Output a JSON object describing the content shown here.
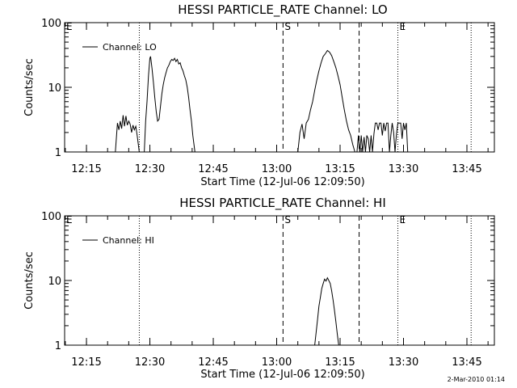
{
  "footer": "2-Mar-2010 01:14",
  "chart_data": [
    {
      "type": "line",
      "title": "HESSI PARTICLE_RATE Channel: LO",
      "xlabel": "Start Time (12-Jul-06 12:09:50)",
      "ylabel": "Counts/sec",
      "yscale": "log",
      "ylim": [
        1,
        100
      ],
      "xlim": [
        "12:09:50",
        "13:51:30"
      ],
      "xticks": [
        "12:15",
        "12:30",
        "12:45",
        "13:00",
        "13:15",
        "13:30",
        "13:45"
      ],
      "yticks": [
        "1",
        "10",
        "100"
      ],
      "legend": {
        "position": "top-left",
        "entries": [
          "Channel: LO"
        ]
      },
      "markers": [
        {
          "label": "E",
          "time": "12:09:50",
          "style": "dotted"
        },
        {
          "label": "",
          "time": "12:27:30",
          "style": "dotted"
        },
        {
          "label": "S",
          "time": "13:01:30",
          "style": "dashed"
        },
        {
          "label": "",
          "time": "13:19:30",
          "style": "dashed"
        },
        {
          "label": "E",
          "time": "13:28:40",
          "style": "dotted"
        },
        {
          "label": "",
          "time": "13:46:00",
          "style": "dotted"
        }
      ],
      "series": [
        {
          "name": "Channel: LO",
          "segments": [
            [
              [
                "12:21:50",
                1
              ],
              [
                "12:22:20",
                2.8
              ],
              [
                "12:22:40",
                2.2
              ],
              [
                "12:23:00",
                3.0
              ],
              [
                "12:23:20",
                2.3
              ],
              [
                "12:23:40",
                3.7
              ],
              [
                "12:24:00",
                2.5
              ],
              [
                "12:24:20",
                3.6
              ],
              [
                "12:24:40",
                2.6
              ],
              [
                "12:25:00",
                3.0
              ],
              [
                "12:25:20",
                2.7
              ],
              [
                "12:25:40",
                2.0
              ],
              [
                "12:26:00",
                2.6
              ],
              [
                "12:26:20",
                2.2
              ],
              [
                "12:26:40",
                2.5
              ],
              [
                "12:27:00",
                1.8
              ],
              [
                "12:27:30",
                1
              ]
            ],
            [
              [
                "12:28:40",
                1
              ],
              [
                "12:29:00",
                3
              ],
              [
                "12:29:20",
                6
              ],
              [
                "12:29:40",
                15
              ],
              [
                "12:30:00",
                28
              ],
              [
                "12:30:10",
                30
              ],
              [
                "12:30:30",
                20
              ],
              [
                "12:30:50",
                12
              ],
              [
                "12:31:10",
                7
              ],
              [
                "12:31:30",
                4.2
              ],
              [
                "12:31:50",
                3.0
              ],
              [
                "12:32:10",
                3.2
              ],
              [
                "12:32:30",
                5
              ],
              [
                "12:32:50",
                8
              ],
              [
                "12:33:10",
                11
              ],
              [
                "12:33:30",
                14
              ],
              [
                "12:33:50",
                17
              ],
              [
                "12:34:10",
                20
              ],
              [
                "12:34:30",
                22
              ],
              [
                "12:34:50",
                25
              ],
              [
                "12:35:10",
                27
              ],
              [
                "12:35:30",
                26
              ],
              [
                "12:35:50",
                28
              ],
              [
                "12:36:10",
                25
              ],
              [
                "12:36:30",
                27
              ],
              [
                "12:36:50",
                23
              ],
              [
                "12:37:10",
                24
              ],
              [
                "12:37:30",
                20
              ],
              [
                "12:37:50",
                18
              ],
              [
                "12:38:10",
                15
              ],
              [
                "12:38:30",
                13
              ],
              [
                "12:38:50",
                10
              ],
              [
                "12:39:10",
                7
              ],
              [
                "12:39:30",
                4.5
              ],
              [
                "12:39:50",
                3
              ],
              [
                "12:40:10",
                1.8
              ],
              [
                "12:40:40",
                1
              ]
            ],
            [
              [
                "13:05:00",
                1
              ],
              [
                "13:05:30",
                2
              ],
              [
                "13:06:00",
                2.7
              ],
              [
                "13:06:30",
                1.6
              ],
              [
                "13:07:00",
                2.8
              ],
              [
                "13:07:30",
                3.2
              ],
              [
                "13:08:00",
                4.5
              ],
              [
                "13:08:30",
                6
              ],
              [
                "13:09:00",
                9
              ],
              [
                "13:09:30",
                13
              ],
              [
                "13:10:00",
                18
              ],
              [
                "13:10:30",
                24
              ],
              [
                "13:11:00",
                30
              ],
              [
                "13:11:30",
                33
              ],
              [
                "13:12:00",
                37
              ],
              [
                "13:12:30",
                35
              ],
              [
                "13:13:00",
                31
              ],
              [
                "13:13:30",
                25
              ],
              [
                "13:14:00",
                20
              ],
              [
                "13:14:30",
                15
              ],
              [
                "13:15:00",
                11
              ],
              [
                "13:15:30",
                7
              ],
              [
                "13:16:00",
                4.5
              ],
              [
                "13:16:30",
                3
              ],
              [
                "13:17:00",
                2.2
              ],
              [
                "13:17:30",
                1.8
              ],
              [
                "13:18:00",
                1.3
              ],
              [
                "13:18:30",
                1
              ]
            ],
            [
              [
                "13:19:00",
                1
              ],
              [
                "13:19:20",
                1.8
              ],
              [
                "13:19:40",
                1
              ],
              [
                "13:20:00",
                1.8
              ],
              [
                "13:20:20",
                1
              ],
              [
                "13:20:40",
                1.7
              ],
              [
                "13:21:00",
                1
              ],
              [
                "13:21:20",
                1.8
              ],
              [
                "13:21:40",
                1.6
              ],
              [
                "13:22:00",
                1
              ],
              [
                "13:22:20",
                1.8
              ],
              [
                "13:22:40",
                1
              ],
              [
                "13:23:00",
                1.9
              ],
              [
                "13:23:20",
                2.8
              ],
              [
                "13:23:40",
                2.8
              ],
              [
                "13:24:00",
                2.2
              ],
              [
                "13:24:20",
                2.8
              ],
              [
                "13:24:40",
                2.8
              ],
              [
                "13:25:00",
                1.8
              ],
              [
                "13:25:20",
                2.8
              ],
              [
                "13:25:40",
                2.1
              ],
              [
                "13:26:00",
                2.8
              ],
              [
                "13:26:20",
                2.8
              ],
              [
                "13:26:40",
                1
              ],
              [
                "13:27:00",
                1.8
              ],
              [
                "13:27:20",
                2.8
              ],
              [
                "13:27:40",
                2.0
              ],
              [
                "13:28:00",
                1
              ],
              [
                "13:28:20",
                1.9
              ],
              [
                "13:28:40",
                2.8
              ],
              [
                "13:29:00",
                2.8
              ],
              [
                "13:29:20",
                2.8
              ],
              [
                "13:29:40",
                1.6
              ],
              [
                "13:30:00",
                2.8
              ],
              [
                "13:30:20",
                2.2
              ],
              [
                "13:30:40",
                2.8
              ],
              [
                "13:31:00",
                1
              ]
            ]
          ]
        }
      ]
    },
    {
      "type": "line",
      "title": "HESSI PARTICLE_RATE Channel: HI",
      "xlabel": "Start Time (12-Jul-06 12:09:50)",
      "ylabel": "Counts/sec",
      "yscale": "log",
      "ylim": [
        1,
        100
      ],
      "xlim": [
        "12:09:50",
        "13:51:30"
      ],
      "xticks": [
        "12:15",
        "12:30",
        "12:45",
        "13:00",
        "13:15",
        "13:30",
        "13:45"
      ],
      "yticks": [
        "1",
        "10",
        "100"
      ],
      "legend": {
        "position": "top-left",
        "entries": [
          "Channel: HI"
        ]
      },
      "markers": [
        {
          "label": "E",
          "time": "12:09:50",
          "style": "dotted"
        },
        {
          "label": "",
          "time": "12:27:30",
          "style": "dotted"
        },
        {
          "label": "S",
          "time": "13:01:30",
          "style": "dashed"
        },
        {
          "label": "",
          "time": "13:19:30",
          "style": "dashed"
        },
        {
          "label": "E",
          "time": "13:28:40",
          "style": "dotted"
        },
        {
          "label": "",
          "time": "13:46:00",
          "style": "dotted"
        }
      ],
      "series": [
        {
          "name": "Channel: HI",
          "segments": [
            [
              [
                "13:09:00",
                1
              ],
              [
                "13:09:20",
                1.6
              ],
              [
                "13:09:40",
                2.5
              ],
              [
                "13:10:00",
                4
              ],
              [
                "13:10:20",
                5.5
              ],
              [
                "13:10:40",
                7.5
              ],
              [
                "13:11:00",
                9
              ],
              [
                "13:11:20",
                10.5
              ],
              [
                "13:11:40",
                9.8
              ],
              [
                "13:12:00",
                11
              ],
              [
                "13:12:20",
                10
              ],
              [
                "13:12:40",
                9
              ],
              [
                "13:13:00",
                7
              ],
              [
                "13:13:20",
                5
              ],
              [
                "13:13:40",
                3.5
              ],
              [
                "13:14:00",
                2.3
              ],
              [
                "13:14:20",
                1.5
              ],
              [
                "13:14:40",
                1
              ]
            ]
          ]
        }
      ]
    }
  ]
}
